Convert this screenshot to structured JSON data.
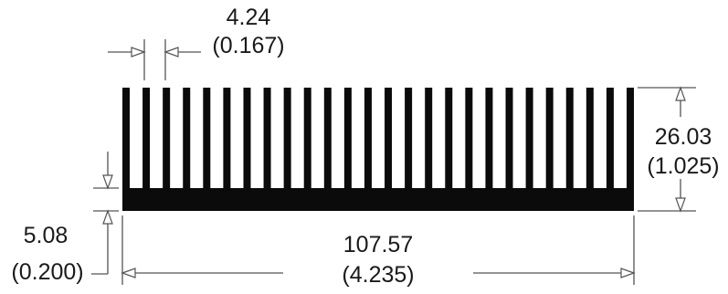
{
  "diagram": {
    "colors": {
      "profile": "#0b0b0b",
      "lines": "#555555",
      "text": "#1a1a1a"
    },
    "heatsink": {
      "fin_count": 26
    },
    "dimensions": {
      "fin_pitch": {
        "mm": "4.24",
        "in": "(0.167)"
      },
      "height": {
        "mm": "26.03",
        "in": "(1.025)"
      },
      "base_thickness": {
        "mm": "5.08",
        "in": "(0.200)"
      },
      "width": {
        "mm": "107.57",
        "in": "(4.235)"
      }
    }
  }
}
